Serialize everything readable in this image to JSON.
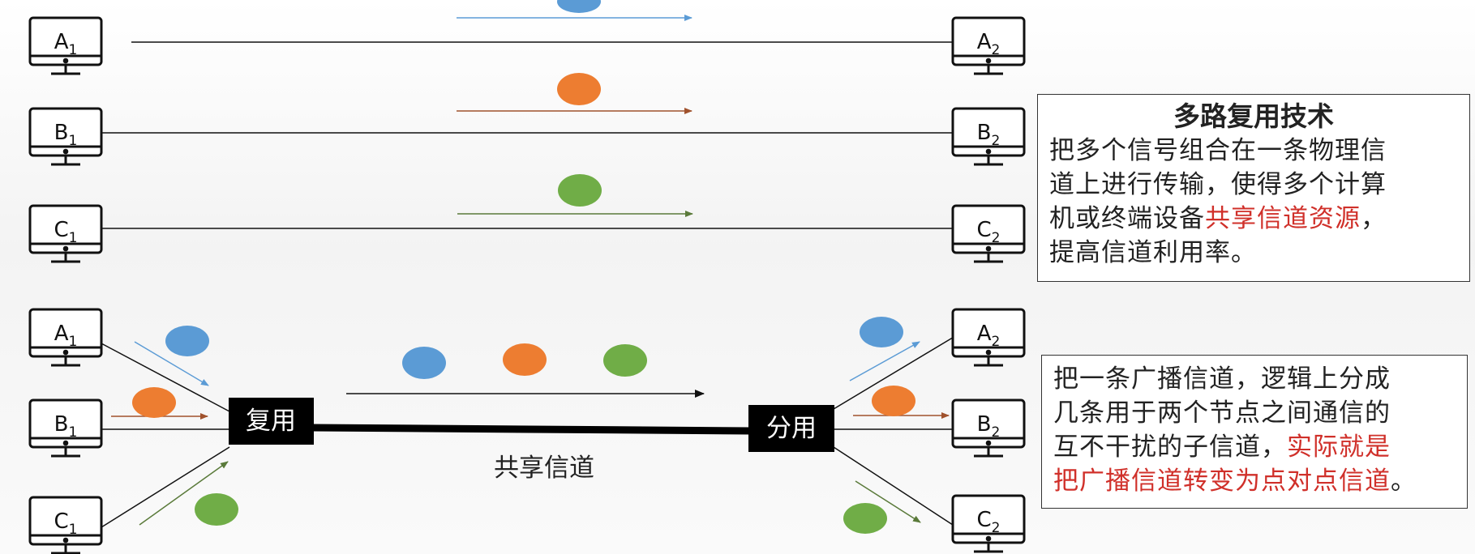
{
  "top_section": {
    "nodes_left": [
      {
        "letter": "A",
        "sub": "1"
      },
      {
        "letter": "B",
        "sub": "1"
      },
      {
        "letter": "C",
        "sub": "1"
      }
    ],
    "nodes_right": [
      {
        "letter": "A",
        "sub": "2"
      },
      {
        "letter": "B",
        "sub": "2"
      },
      {
        "letter": "C",
        "sub": "2"
      }
    ]
  },
  "bottom_section": {
    "nodes_left": [
      {
        "letter": "A",
        "sub": "1"
      },
      {
        "letter": "B",
        "sub": "1"
      },
      {
        "letter": "C",
        "sub": "1"
      }
    ],
    "nodes_right": [
      {
        "letter": "A",
        "sub": "2"
      },
      {
        "letter": "B",
        "sub": "2"
      },
      {
        "letter": "C",
        "sub": "2"
      }
    ],
    "mux_label": "复用",
    "demux_label": "分用",
    "channel_label": "共享信道"
  },
  "info_box_1": {
    "title": "多路复用技术",
    "line1": "把多个信号组合在一条物理信",
    "line2": "道上进行传输，使得多个计算",
    "line3_pre": "机或终端设备",
    "line3_red": "共享信道资源",
    "line3_post": "，",
    "line4": "提高信道利用率。"
  },
  "info_box_2": {
    "line1": "把一条广播信道，逻辑上分成",
    "line2": "几条用于两个节点之间通信的",
    "line3_pre": "互不干扰的子信道，",
    "line3_red": "实际就是",
    "line4_red": "把广播信道转变为点对点信道",
    "line4_post": "。"
  },
  "colors": {
    "blue": "#5b9bd5",
    "orange": "#ed7d31",
    "green": "#70ad47",
    "highlight_red": "#d0302a",
    "arrow_brown": "#a0522d",
    "arrow_green": "#5a7a3a"
  }
}
